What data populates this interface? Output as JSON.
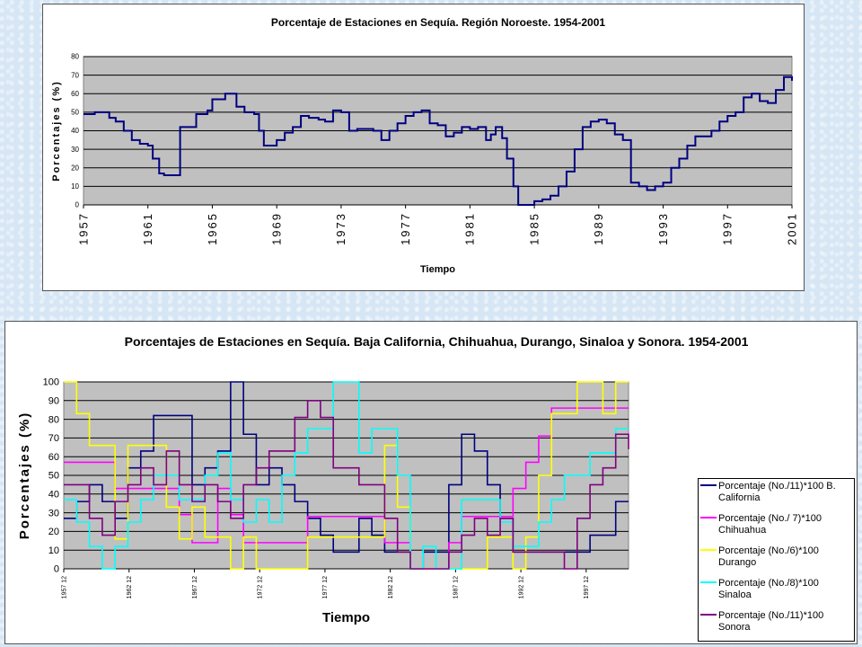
{
  "chart_data": [
    {
      "type": "line",
      "title": "Porcentaje de Estaciones en Sequía. Región Noroeste. 1954-2001",
      "xlabel": "Tiempo",
      "ylabel": "Porcentajes (%)",
      "ylim": [
        0,
        80
      ],
      "yticks": [
        "0",
        "10",
        "20",
        "30",
        "40",
        "50",
        "60",
        "70",
        "80"
      ],
      "xticks": [
        "1957",
        "1961",
        "1965",
        "1969",
        "1973",
        "1977",
        "1981",
        "1985",
        "1989",
        "1993",
        "1997",
        "2001"
      ],
      "xlim": [
        1957,
        2001
      ],
      "grid": true,
      "series": [
        {
          "color": "#000080",
          "x": [
            1957,
            1957.7,
            1958,
            1958.6,
            1959,
            1959.5,
            1960,
            1960.5,
            1961,
            1961.3,
            1961.7,
            1962,
            1963,
            1963.5,
            1964,
            1964.7,
            1965,
            1965.8,
            1966,
            1966.5,
            1967,
            1967.6,
            1967.9,
            1968.2,
            1969,
            1969.5,
            1970,
            1970.5,
            1971,
            1971.6,
            1972,
            1972.5,
            1973,
            1973.5,
            1974,
            1974.5,
            1975,
            1975.5,
            1976,
            1976.5,
            1977,
            1977.5,
            1978,
            1978.5,
            1979,
            1979.5,
            1980,
            1980.5,
            1981,
            1981.5,
            1982,
            1982.3,
            1982.6,
            1983,
            1983.3,
            1983.7,
            1984,
            1984.5,
            1985,
            1985.5,
            1986,
            1986.5,
            1987,
            1987.5,
            1988,
            1988.5,
            1989,
            1989.5,
            1990,
            1990.5,
            1991,
            1991.5,
            1992,
            1992.5,
            1993,
            1993.5,
            1994,
            1994.5,
            1995,
            1995.5,
            1996,
            1996.5,
            1997,
            1997.5,
            1998,
            1998.5,
            1999,
            1999.5,
            2000,
            2000.5,
            2001
          ],
          "y": [
            49,
            50,
            50,
            47,
            45,
            40,
            35,
            33,
            32,
            25,
            17,
            16,
            42,
            42,
            49,
            51,
            57,
            60,
            60,
            53,
            50,
            49,
            40,
            32,
            35,
            39,
            42,
            48,
            47,
            46,
            45,
            51,
            50,
            40,
            41,
            41,
            40,
            35,
            40,
            44,
            48,
            50,
            51,
            44,
            43,
            37,
            39,
            42,
            41,
            42,
            35,
            38,
            42,
            36,
            25,
            10,
            0,
            0,
            2,
            3,
            5,
            10,
            18,
            30,
            42,
            45,
            46,
            44,
            38,
            35,
            12,
            10,
            8,
            10,
            12,
            20,
            25,
            32,
            37,
            37,
            40,
            45,
            48,
            50,
            58,
            60,
            56,
            55,
            62,
            69,
            67
          ]
        }
      ]
    },
    {
      "type": "line",
      "title": "Porcentajes de Estaciones en Sequía. Baja California, Chihuahua, Durango, Sinaloa y Sonora. 1954-2001",
      "xlabel": "Tiempo",
      "ylabel": "Porcentajes (%)",
      "ylim": [
        0,
        100
      ],
      "yticks": [
        "0",
        "10",
        "20",
        "30",
        "40",
        "50",
        "60",
        "70",
        "80",
        "90",
        "100"
      ],
      "xticks": [
        "1957 12",
        "1962 12",
        "1967 12",
        "1972 12",
        "1977 12",
        "1982 12",
        "1987 12",
        "1992 12",
        "1997 12"
      ],
      "xlim": [
        1957,
        2001
      ],
      "grid": true,
      "legend": "right",
      "series": [
        {
          "name": "Porcentaje (No./11)*100 B. California",
          "color": "#000080",
          "x": [
            1957,
            1958,
            1959,
            1960,
            1961,
            1962,
            1963,
            1964,
            1965,
            1966,
            1967,
            1968,
            1969,
            1970,
            1971,
            1972,
            1973,
            1974,
            1975,
            1976,
            1977,
            1978,
            1979,
            1980,
            1981,
            1982,
            1983,
            1984,
            1985,
            1986,
            1987,
            1988,
            1989,
            1990,
            1991,
            1992,
            1993,
            1994,
            1995,
            1996,
            1997,
            1998,
            1999,
            2000,
            2001
          ],
          "y": [
            27,
            36,
            45,
            36,
            27,
            54,
            63,
            82,
            82,
            82,
            45,
            54,
            63,
            100,
            72,
            45,
            54,
            45,
            36,
            27,
            18,
            9,
            9,
            27,
            18,
            9,
            9,
            0,
            9,
            9,
            45,
            72,
            63,
            45,
            27,
            9,
            9,
            9,
            9,
            9,
            9,
            18,
            18,
            36,
            36
          ]
        },
        {
          "name": "Porcentaje (No./ 7)*100 Chihuahua",
          "color": "#ff00ff",
          "x": [
            1957,
            1958,
            1959,
            1960,
            1961,
            1962,
            1963,
            1964,
            1965,
            1966,
            1967,
            1968,
            1969,
            1970,
            1971,
            1972,
            1973,
            1974,
            1975,
            1976,
            1977,
            1978,
            1979,
            1980,
            1981,
            1982,
            1983,
            1984,
            1985,
            1986,
            1987,
            1988,
            1989,
            1990,
            1991,
            1992,
            1993,
            1994,
            1995,
            1996,
            1997,
            1998,
            1999,
            2000,
            2001
          ],
          "y": [
            57,
            57,
            57,
            57,
            43,
            43,
            43,
            43,
            43,
            29,
            14,
            14,
            43,
            29,
            14,
            14,
            14,
            14,
            14,
            28,
            28,
            28,
            28,
            28,
            28,
            14,
            14,
            0,
            0,
            0,
            14,
            28,
            28,
            28,
            28,
            43,
            57,
            71,
            86,
            86,
            86,
            86,
            86,
            86,
            86
          ]
        },
        {
          "name": "Porcentaje (No./6)*100 Durango",
          "color": "#ffff00",
          "x": [
            1957,
            1958,
            1959,
            1960,
            1961,
            1962,
            1963,
            1964,
            1965,
            1966,
            1967,
            1968,
            1969,
            1970,
            1971,
            1972,
            1973,
            1974,
            1975,
            1976,
            1977,
            1978,
            1979,
            1980,
            1981,
            1982,
            1983,
            1984,
            1985,
            1986,
            1987,
            1988,
            1989,
            1990,
            1991,
            1992,
            1993,
            1994,
            1995,
            1996,
            1997,
            1998,
            1999,
            2000,
            2001
          ],
          "y": [
            100,
            83,
            66,
            66,
            16,
            66,
            66,
            66,
            33,
            16,
            33,
            17,
            17,
            0,
            17,
            0,
            0,
            0,
            0,
            17,
            17,
            17,
            17,
            17,
            17,
            66,
            33,
            0,
            0,
            0,
            0,
            0,
            0,
            17,
            17,
            0,
            17,
            50,
            83,
            83,
            100,
            100,
            83,
            100,
            100
          ]
        },
        {
          "name": "Porcentaje (No./8)*100 Sinaloa",
          "color": "#00ffff",
          "x": [
            1957,
            1958,
            1959,
            1960,
            1961,
            1962,
            1963,
            1964,
            1965,
            1966,
            1967,
            1968,
            1969,
            1970,
            1971,
            1972,
            1973,
            1974,
            1975,
            1976,
            1977,
            1978,
            1979,
            1980,
            1981,
            1982,
            1983,
            1984,
            1985,
            1986,
            1987,
            1988,
            1989,
            1990,
            1991,
            1992,
            1993,
            1994,
            1995,
            1996,
            1997,
            1998,
            1999,
            2000,
            2001
          ],
          "y": [
            37,
            25,
            12,
            0,
            12,
            25,
            37,
            50,
            50,
            37,
            37,
            50,
            62,
            37,
            25,
            37,
            25,
            50,
            62,
            75,
            75,
            100,
            100,
            62,
            75,
            75,
            50,
            0,
            12,
            0,
            0,
            37,
            37,
            37,
            25,
            12,
            12,
            25,
            37,
            50,
            50,
            62,
            62,
            75,
            75
          ]
        },
        {
          "name": "Porcentaje (No./11)*100 Sonora",
          "color": "#800080",
          "x": [
            1957,
            1958,
            1959,
            1960,
            1961,
            1962,
            1963,
            1964,
            1965,
            1966,
            1967,
            1968,
            1969,
            1970,
            1971,
            1972,
            1973,
            1974,
            1975,
            1976,
            1977,
            1978,
            1979,
            1980,
            1981,
            1982,
            1983,
            1984,
            1985,
            1986,
            1987,
            1988,
            1989,
            1990,
            1991,
            1992,
            1993,
            1994,
            1995,
            1996,
            1997,
            1998,
            1999,
            2000,
            2001
          ],
          "y": [
            45,
            45,
            27,
            18,
            36,
            45,
            54,
            45,
            63,
            45,
            36,
            45,
            36,
            27,
            45,
            54,
            63,
            63,
            81,
            90,
            81,
            54,
            54,
            45,
            45,
            27,
            9,
            0,
            0,
            0,
            9,
            18,
            27,
            18,
            27,
            9,
            9,
            9,
            9,
            0,
            27,
            45,
            54,
            72,
            64
          ]
        }
      ]
    }
  ]
}
